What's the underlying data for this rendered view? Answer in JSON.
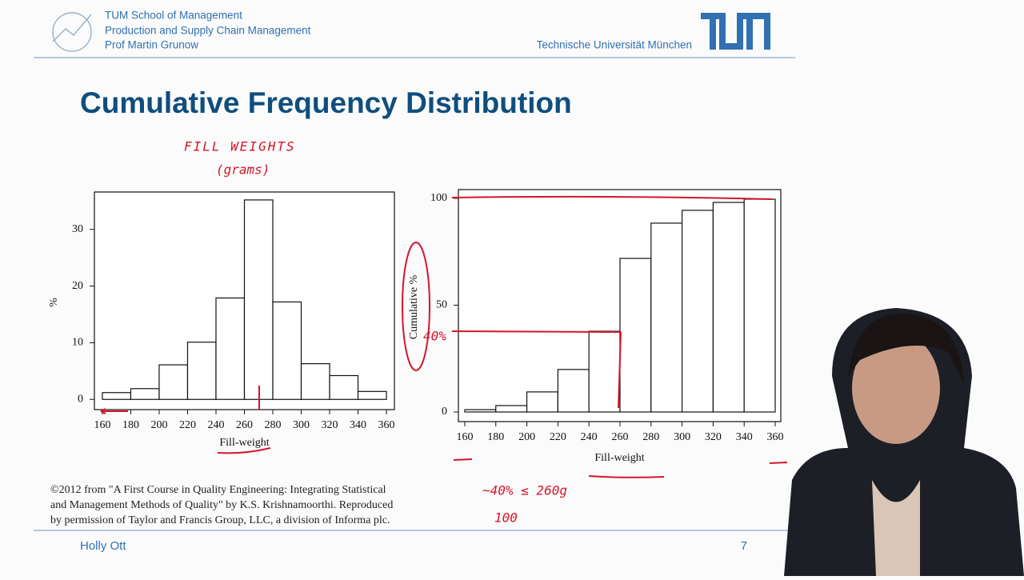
{
  "header": {
    "lines": [
      "TUM School of Management",
      "Production and Supply Chain Management",
      "Prof Martin Grunow"
    ],
    "university": "Technische Universität München"
  },
  "title": "Cumulative Frequency Distribution",
  "chart_data": [
    {
      "type": "histogram",
      "xlabel": "Fill-weight",
      "ylabel": "%",
      "bins": [
        160,
        180,
        200,
        220,
        240,
        260,
        280,
        300,
        320,
        340,
        360
      ],
      "values": [
        1.2,
        1.9,
        6.1,
        10.1,
        17.9,
        35.2,
        17.2,
        6.3,
        4.2,
        1.4
      ],
      "xlim": [
        154.4,
        365.6
      ],
      "ylim": [
        -1.8,
        36.6
      ],
      "xticks": [
        160,
        180,
        200,
        220,
        240,
        260,
        280,
        300,
        320,
        340,
        360
      ],
      "yticks": [
        0,
        10,
        20,
        30
      ]
    },
    {
      "type": "histogram",
      "xlabel": "Fill-weight",
      "ylabel": "Cumulative %",
      "bins": [
        160,
        180,
        200,
        220,
        240,
        260,
        280,
        300,
        320,
        340,
        360
      ],
      "values": [
        1.1,
        3,
        9.4,
        19.9,
        37.8,
        71.9,
        88.4,
        94.4,
        98.1,
        99.6
      ],
      "xlim": [
        155.9,
        363.6
      ],
      "ylim": [
        -4.5,
        104.1
      ],
      "xticks": [
        160,
        180,
        200,
        220,
        240,
        260,
        280,
        300,
        320,
        340,
        360
      ],
      "yticks": [
        0,
        50,
        100
      ]
    }
  ],
  "annotations": [
    "FILL WEIGHTS",
    "(grams)",
    "40%",
    "~40% ≤ 260g",
    "100"
  ],
  "citation": [
    "©2012 from \"A First Course in Quality Engineering: Integrating Statistical",
    "and Management Methods of Quality\" by K.S. Krishnamoorthi. Reproduced",
    "by permission of Taylor and Francis Group, LLC, a division of Informa plc."
  ],
  "footer": {
    "presenter": "Holly Ott",
    "page": "7"
  }
}
